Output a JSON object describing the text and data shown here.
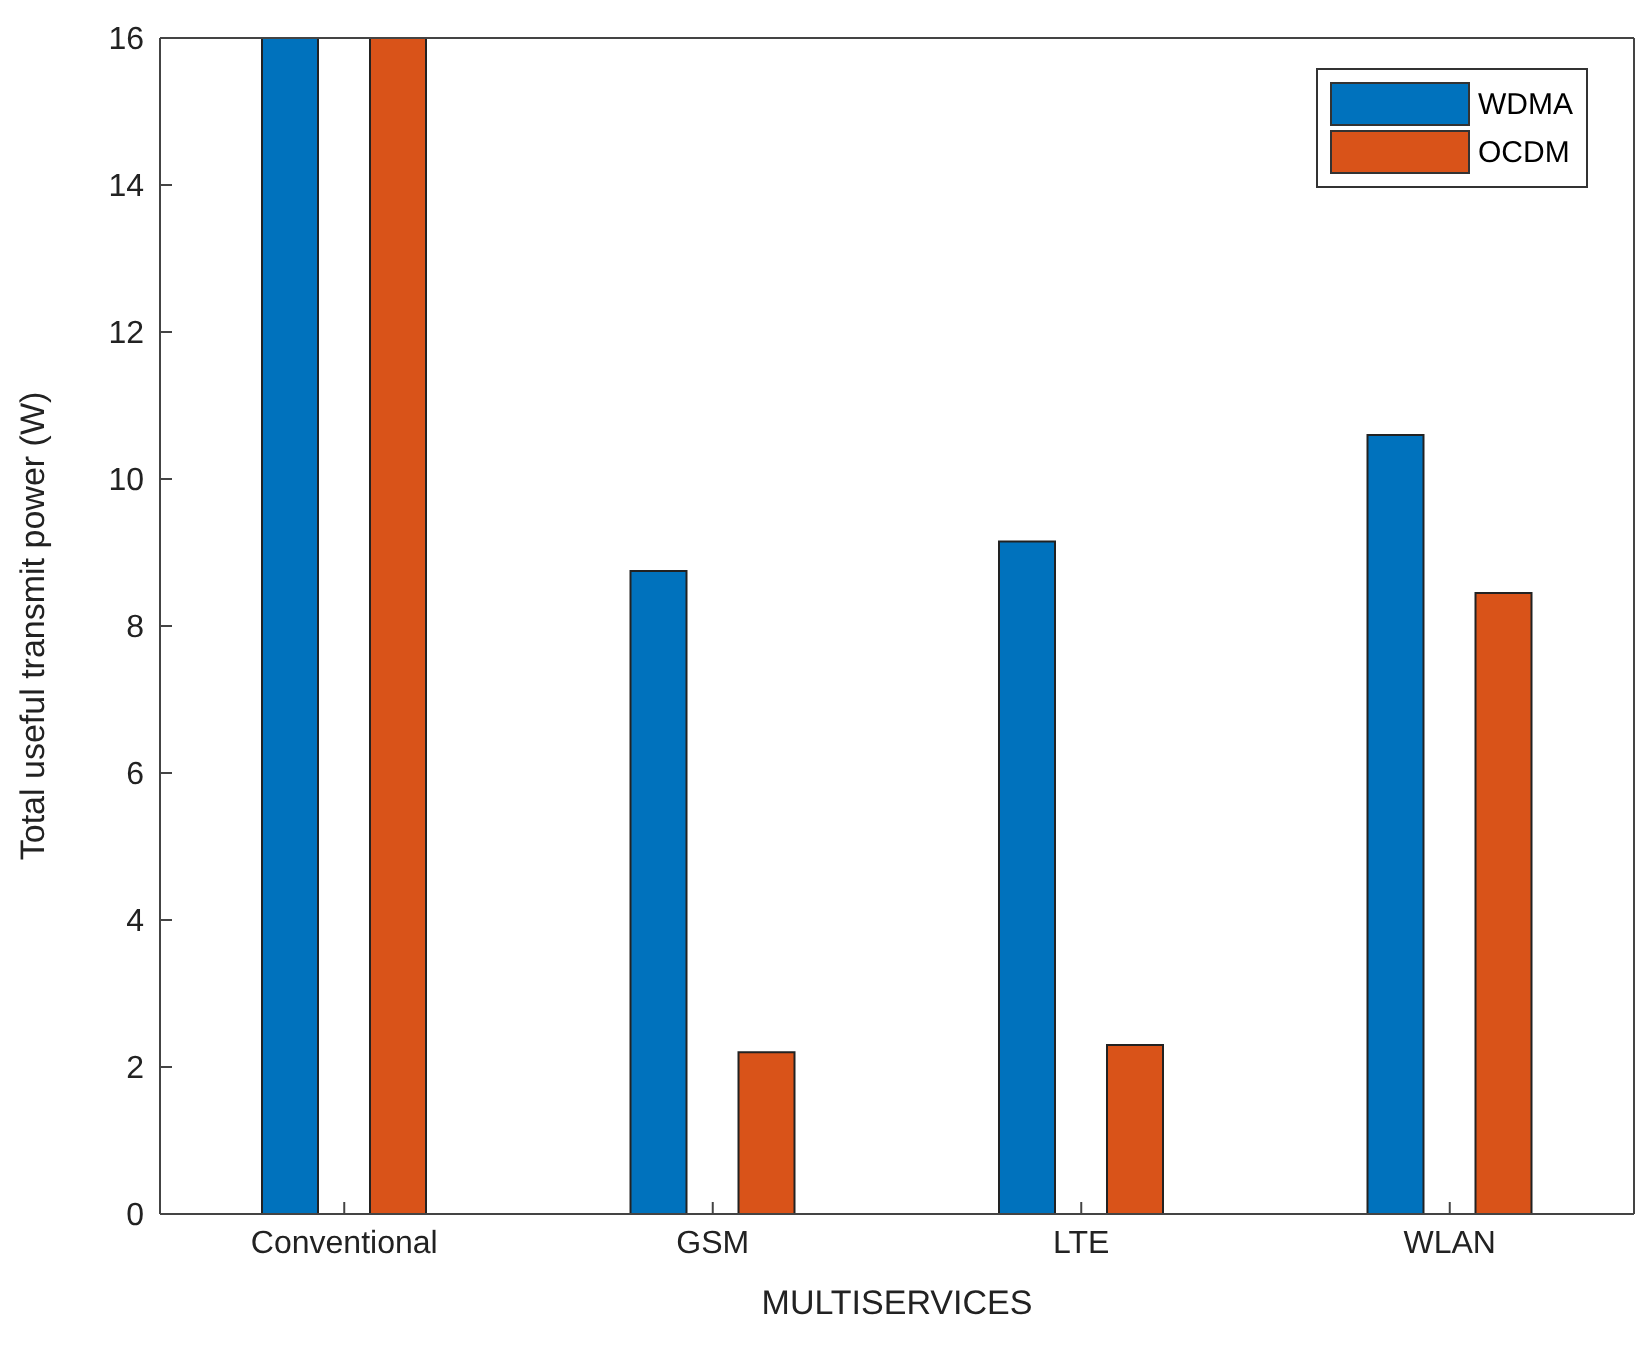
{
  "chart_data": {
    "type": "bar",
    "xlabel": "MULTISERVICES",
    "ylabel": "Total useful transmit power (W)",
    "categories": [
      "Conventional",
      "GSM",
      "LTE",
      "WLAN"
    ],
    "series": [
      {
        "name": "WDMA",
        "color": "#0072bd",
        "values": [
          16,
          8.75,
          9.15,
          10.6
        ]
      },
      {
        "name": "OCDM",
        "color": "#d95319",
        "values": [
          16,
          2.2,
          2.3,
          8.45
        ]
      }
    ],
    "ylim": [
      0,
      16
    ],
    "yticks": [
      0,
      2,
      4,
      6,
      8,
      10,
      12,
      14,
      16
    ],
    "grid": false,
    "legend": "top right"
  }
}
